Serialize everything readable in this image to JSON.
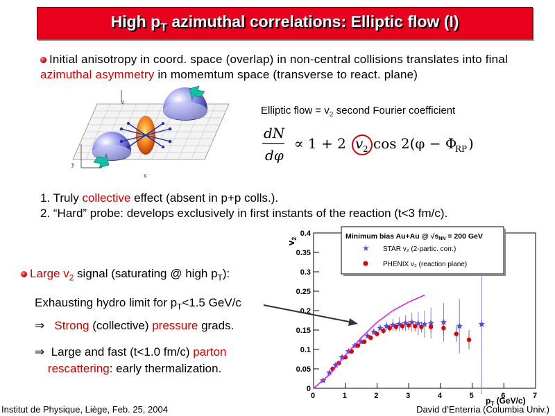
{
  "slide": {
    "title_main": "High p",
    "title_sub": "T",
    "title_rest": " azimuthal correlations: Elliptic flow (I)",
    "intro_part1": "Initial anisotropy in coord. space (overlap) in non-central collisions translates into final ",
    "intro_highlight": "azimuthal asymmetry",
    "intro_part2": " in momemtum space (transverse to react. plane)",
    "diagram_axes": {
      "z": "z",
      "y": "y",
      "x": "x"
    },
    "formula_label_prefix": "Elliptic flow = v",
    "formula_label_sub": "2",
    "formula_label_suffix": " second Fourier coefficient",
    "formula": {
      "num": "dN",
      "den": "dφ",
      "body": "∝  1  +  2",
      "v2": "v",
      "v2_sub": "2",
      "cos": "cos 2(φ − Φ",
      "rp": "RP",
      "close": ")"
    },
    "point1_a": "1. Truly ",
    "point1_hl": "collective",
    "point1_b": " effect (absent in p+p colls.).",
    "point2": "2. “Hard” probe: develops exclusively in first instants of the reaction (t<3 fm/c).",
    "large_a": "Large v",
    "large_sub": "2",
    "large_b": " signal (saturating @ high p",
    "large_sub2": "T",
    "large_c": "):",
    "exhaust_a": "Exhausting hydro limit for p",
    "exhaust_sub": "T",
    "exhaust_b": "<1.5 GeV/c",
    "implies": "⇒",
    "strong_hl": "Strong",
    "strong_mid": " (collective) ",
    "strong_hl2": "pressure",
    "strong_end": " grads.",
    "fast_a": " Large and fast (t<1.0 fm/c) ",
    "fast_hl": "parton",
    "fast_hl2": "rescattering",
    "fast_b": ": early thermalization.",
    "footer_left": "Institut de Physique, Liège, Feb. 25, 2004",
    "footer_right": "David d’Enterria (Columbia Univ.)"
  },
  "colors": {
    "title_bg": "#e8001c",
    "highlight": "#d00000",
    "star": "#5050e0",
    "phenix": "#e00000",
    "hydro": "#e020e0"
  },
  "chart_data": {
    "type": "scatter",
    "xlabel": "p",
    "xlabel_sub": "T",
    "xlabel_unit": " (GeV/c)",
    "ylabel": "v",
    "ylabel_sub": "2",
    "xlim": [
      0,
      7
    ],
    "ylim": [
      0,
      0.4
    ],
    "xticks": [
      "0",
      "1",
      "2",
      "3",
      "4",
      "5",
      "6",
      "7"
    ],
    "yticks": [
      "0",
      "0.05",
      "0.1",
      "0.15",
      "0.2",
      "0.25",
      "0.3",
      "0.35",
      "0.4"
    ],
    "legend": {
      "title": "Minimum bias Au+Au @ √s",
      "title_sub": "NN",
      "title_end": " = 200 GeV",
      "entries": [
        {
          "label": "STAR v₂ (2-partic. corr.)",
          "marker": "star"
        },
        {
          "label": "PHENIX v₂ (reaction plane)",
          "marker": "circle"
        }
      ]
    },
    "series": [
      {
        "name": "STAR v₂ (2-partic. corr.)",
        "marker": "star",
        "x": [
          0.3,
          0.5,
          0.7,
          0.9,
          1.1,
          1.3,
          1.5,
          1.7,
          1.9,
          2.1,
          2.3,
          2.5,
          2.7,
          2.9,
          3.1,
          3.3,
          3.5,
          3.7,
          4.1,
          4.6,
          5.3
        ],
        "y": [
          0.02,
          0.04,
          0.06,
          0.08,
          0.095,
          0.11,
          0.12,
          0.135,
          0.145,
          0.155,
          0.16,
          0.163,
          0.165,
          0.168,
          0.17,
          0.167,
          0.165,
          0.168,
          0.17,
          0.16,
          0.165
        ],
        "err": [
          0.003,
          0.003,
          0.004,
          0.005,
          0.005,
          0.006,
          0.006,
          0.007,
          0.008,
          0.01,
          0.012,
          0.015,
          0.018,
          0.02,
          0.025,
          0.03,
          0.035,
          0.04,
          0.05,
          0.07,
          0.18
        ]
      },
      {
        "name": "PHENIX v₂ (reaction plane)",
        "marker": "circle",
        "x": [
          0.6,
          0.8,
          1.0,
          1.2,
          1.4,
          1.6,
          1.8,
          2.0,
          2.2,
          2.4,
          2.6,
          2.8,
          3.0,
          3.2,
          3.4,
          3.7,
          4.1,
          4.5,
          4.9
        ],
        "y": [
          0.05,
          0.065,
          0.08,
          0.095,
          0.11,
          0.12,
          0.13,
          0.14,
          0.148,
          0.155,
          0.158,
          0.16,
          0.162,
          0.16,
          0.158,
          0.158,
          0.155,
          0.14,
          0.125
        ],
        "err": [
          0.003,
          0.004,
          0.004,
          0.005,
          0.005,
          0.006,
          0.006,
          0.007,
          0.008,
          0.009,
          0.01,
          0.011,
          0.012,
          0.013,
          0.014,
          0.015,
          0.017,
          0.02,
          0.025
        ]
      },
      {
        "name": "",
        "marker": "line",
        "x": [
          0,
          0.5,
          1.0,
          1.5,
          2.0,
          2.5,
          3.0,
          3.5
        ],
        "y": [
          0,
          0.035,
          0.085,
          0.13,
          0.17,
          0.2,
          0.222,
          0.24
        ]
      }
    ]
  }
}
